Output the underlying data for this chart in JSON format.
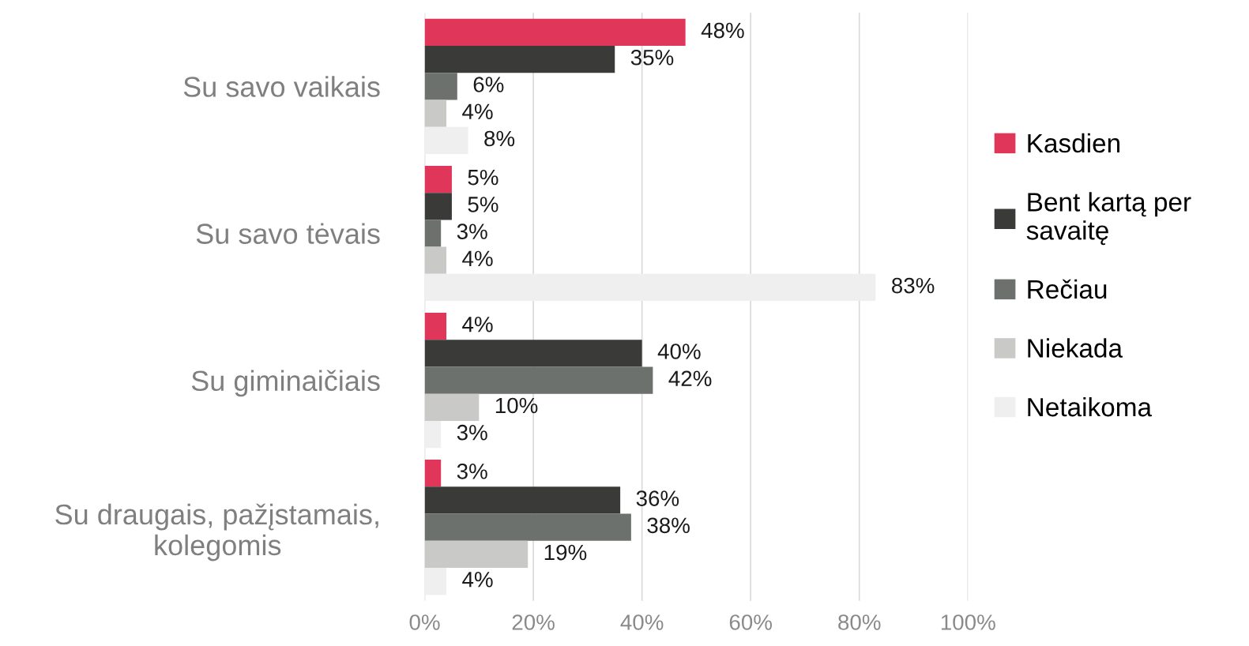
{
  "chart_data": {
    "type": "bar",
    "orientation": "horizontal",
    "categories": [
      "Su savo vaikais",
      "Su savo tėvais",
      "Su giminaičiais",
      "Su draugais, pažįstamais,\nkolegomis"
    ],
    "series": [
      {
        "name": "Kasdien",
        "color": "#e0365a",
        "values": [
          48,
          5,
          4,
          3
        ],
        "value_labels": [
          "48%",
          "5%",
          "4%",
          "3%"
        ]
      },
      {
        "name": "Bent kartą per\nsavaitę",
        "color": "#3a3b39",
        "values": [
          35,
          5,
          40,
          36
        ],
        "value_labels": [
          "35%",
          "5%",
          "40%",
          "36%"
        ]
      },
      {
        "name": "Rečiau",
        "color": "#6d716d",
        "values": [
          6,
          3,
          42,
          38
        ],
        "value_labels": [
          "6%",
          "3%",
          "42%",
          "38%"
        ]
      },
      {
        "name": "Niekada",
        "color": "#c9c9c7",
        "values": [
          4,
          4,
          10,
          19
        ],
        "value_labels": [
          "4%",
          "4%",
          "10%",
          "19%"
        ]
      },
      {
        "name": "Netaikoma",
        "color": "#efefef",
        "values": [
          8,
          83,
          3,
          4
        ],
        "value_labels": [
          "8%",
          "83%",
          "3%",
          "4%"
        ]
      }
    ],
    "xlim": [
      0,
      100
    ],
    "xticks": [
      {
        "value": 0,
        "label": "0%"
      },
      {
        "value": 20,
        "label": "20%"
      },
      {
        "value": 40,
        "label": "40%"
      },
      {
        "value": 60,
        "label": "60%"
      },
      {
        "value": 80,
        "label": "80%"
      },
      {
        "value": 100,
        "label": "100%"
      }
    ],
    "grid": "x",
    "legend": "right"
  }
}
